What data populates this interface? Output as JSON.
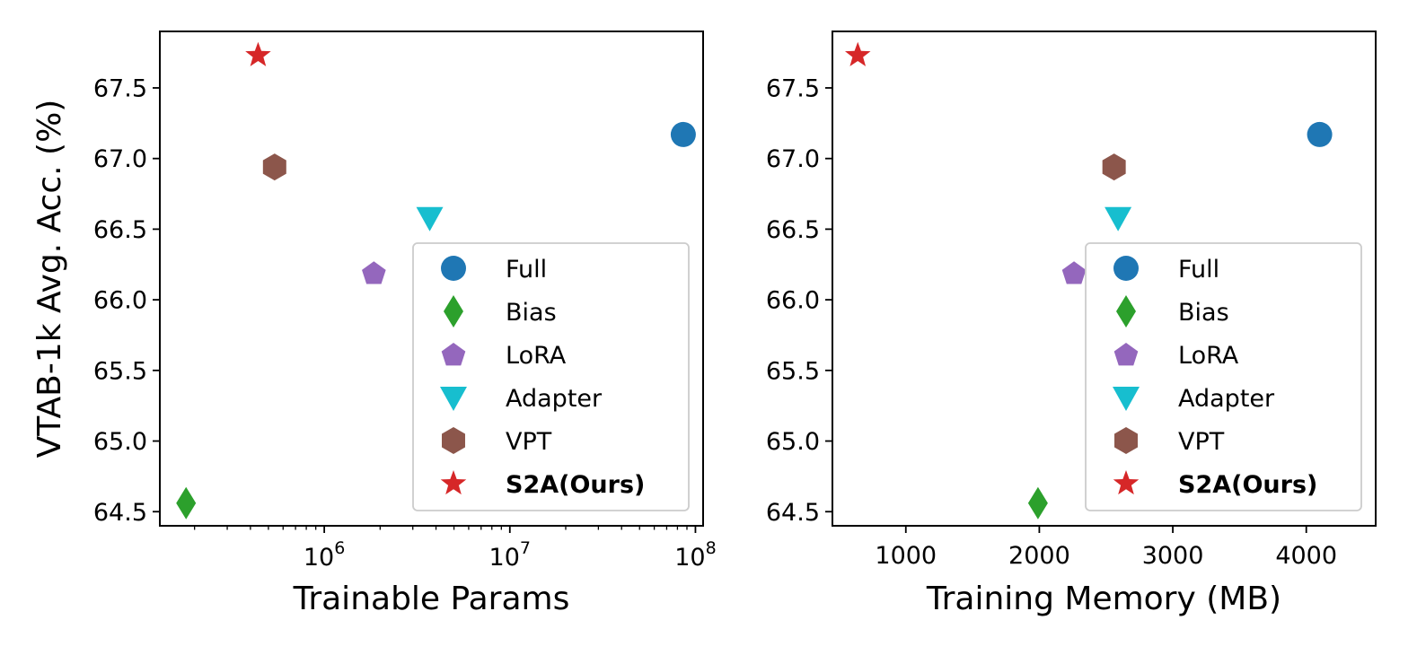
{
  "colors": {
    "Full": "#1f77b4",
    "Bias": "#2ca02c",
    "LoRA": "#9467bd",
    "Adapter": "#17becf",
    "VPT": "#8c564b",
    "S2A(Ours)": "#d62728"
  },
  "chart_data": [
    {
      "type": "scatter",
      "xlabel": "Trainable Params",
      "ylabel": "VTAB-1k Avg. Acc. (%)",
      "xscale": "log",
      "xlim": [
        130000,
        110000000
      ],
      "ylim": [
        64.4,
        67.9
      ],
      "xticks": [
        {
          "value": 1000000,
          "base": "10",
          "exp": "6"
        },
        {
          "value": 10000000,
          "base": "10",
          "exp": "7"
        },
        {
          "value": 100000000,
          "base": "10",
          "exp": "8"
        }
      ],
      "yticks": [
        {
          "value": 64.5,
          "label": "64.5"
        },
        {
          "value": 65.0,
          "label": "65.0"
        },
        {
          "value": 65.5,
          "label": "65.5"
        },
        {
          "value": 66.0,
          "label": "66.0"
        },
        {
          "value": 66.5,
          "label": "66.5"
        },
        {
          "value": 67.0,
          "label": "67.0"
        },
        {
          "value": 67.5,
          "label": "67.5"
        }
      ],
      "legend_position": "lower-right",
      "series": [
        {
          "name": "Full",
          "marker": "circle",
          "x": 86000000,
          "y": 67.17
        },
        {
          "name": "Bias",
          "marker": "diamond",
          "x": 180000,
          "y": 64.56
        },
        {
          "name": "LoRA",
          "marker": "pentagon",
          "x": 1850000,
          "y": 66.19
        },
        {
          "name": "Adapter",
          "marker": "triangle-down",
          "x": 3700000,
          "y": 66.58
        },
        {
          "name": "VPT",
          "marker": "hexagon",
          "x": 540000,
          "y": 66.94
        },
        {
          "name": "S2A(Ours)",
          "marker": "star",
          "x": 440000,
          "y": 67.73,
          "bold": true
        }
      ]
    },
    {
      "type": "scatter",
      "xlabel": "Training Memory (MB)",
      "ylabel": "",
      "xscale": "linear",
      "xlim": [
        450,
        4520
      ],
      "ylim": [
        64.4,
        67.9
      ],
      "xticks": [
        {
          "value": 1000,
          "label": "1000"
        },
        {
          "value": 2000,
          "label": "2000"
        },
        {
          "value": 3000,
          "label": "3000"
        },
        {
          "value": 4000,
          "label": "4000"
        }
      ],
      "yticks": [
        {
          "value": 64.5,
          "label": "64.5"
        },
        {
          "value": 65.0,
          "label": "65.0"
        },
        {
          "value": 65.5,
          "label": "65.5"
        },
        {
          "value": 66.0,
          "label": "66.0"
        },
        {
          "value": 66.5,
          "label": "66.5"
        },
        {
          "value": 67.0,
          "label": "67.0"
        },
        {
          "value": 67.5,
          "label": "67.5"
        }
      ],
      "legend_position": "lower-right",
      "series": [
        {
          "name": "Full",
          "marker": "circle",
          "x": 4100,
          "y": 67.17
        },
        {
          "name": "Bias",
          "marker": "diamond",
          "x": 1990,
          "y": 64.56
        },
        {
          "name": "LoRA",
          "marker": "pentagon",
          "x": 2260,
          "y": 66.19
        },
        {
          "name": "Adapter",
          "marker": "triangle-down",
          "x": 2590,
          "y": 66.58
        },
        {
          "name": "VPT",
          "marker": "hexagon",
          "x": 2560,
          "y": 66.94
        },
        {
          "name": "S2A(Ours)",
          "marker": "star",
          "x": 640,
          "y": 67.73,
          "bold": true
        }
      ]
    }
  ]
}
